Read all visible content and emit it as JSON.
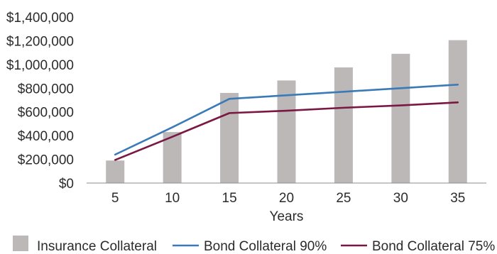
{
  "chart_data": {
    "type": "bar",
    "title": "",
    "xlabel": "Years",
    "ylabel": "",
    "categories": [
      "5",
      "10",
      "15",
      "20",
      "25",
      "30",
      "35"
    ],
    "ylim": [
      0,
      1400000
    ],
    "yticks": [
      0,
      200000,
      400000,
      600000,
      800000,
      1000000,
      1200000,
      1400000
    ],
    "ytick_labels": [
      "$0",
      "$200,000",
      "$400,000",
      "$600,000",
      "$800,000",
      "$1,000,000",
      "$1,200,000",
      "$1,400,000"
    ],
    "grid": false,
    "legend_position": "bottom",
    "series": [
      {
        "name": "Insurance Collateral",
        "kind": "bar",
        "color": "#bcb8b8",
        "values": [
          190000,
          430000,
          760000,
          865000,
          975000,
          1090000,
          1205000
        ]
      },
      {
        "name": "Bond Collateral 90%",
        "kind": "line",
        "color": "#3a7ab8",
        "values": [
          240000,
          470000,
          710000,
          740000,
          770000,
          800000,
          830000
        ]
      },
      {
        "name": "Bond Collateral 75%",
        "kind": "line",
        "color": "#7a1743",
        "values": [
          195000,
          390000,
          590000,
          610000,
          635000,
          655000,
          680000
        ]
      }
    ]
  }
}
